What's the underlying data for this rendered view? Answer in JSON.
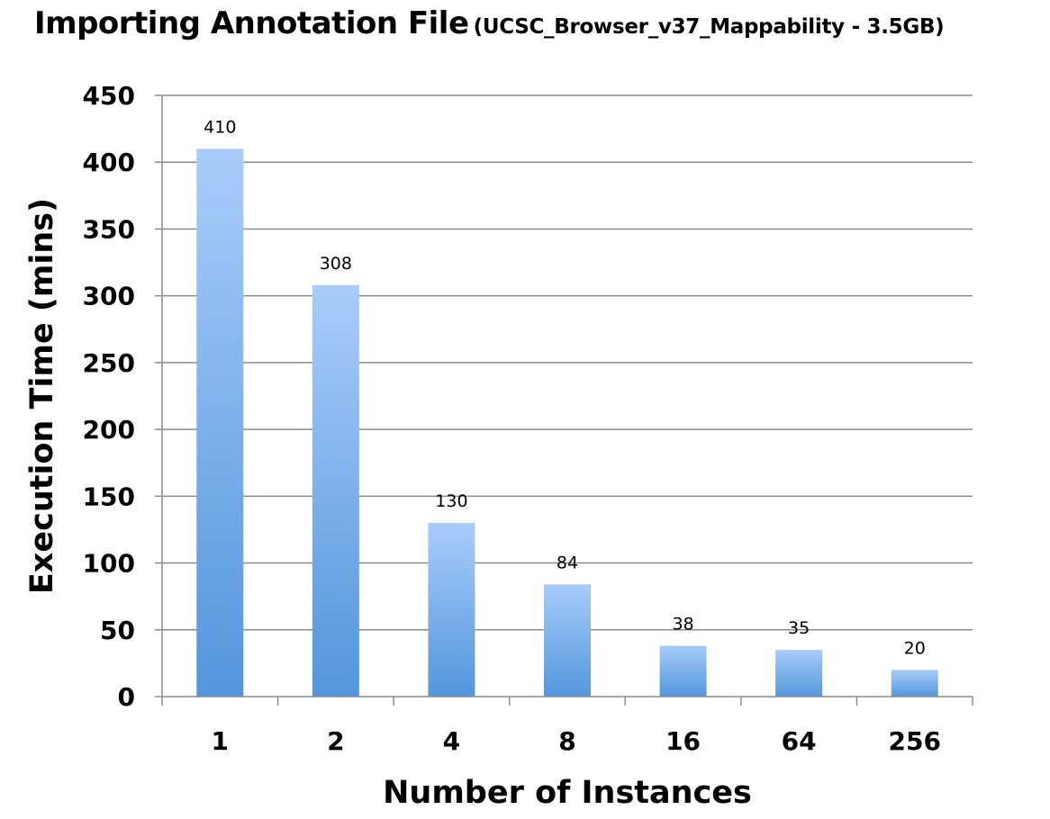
{
  "chart_data": {
    "type": "bar",
    "title": "Importing Annotation File",
    "subtitle": "(UCSC_Browser_v37_Mappability - 3.5GB)",
    "xlabel": "Number of Instances",
    "ylabel": "Execution Time (mins)",
    "categories": [
      "1",
      "2",
      "4",
      "8",
      "16",
      "64",
      "256"
    ],
    "values": [
      410,
      308,
      130,
      84,
      38,
      35,
      20
    ],
    "data_labels": [
      "410",
      "308",
      "130",
      "84",
      "38",
      "35",
      "20"
    ],
    "ylim": [
      0,
      450
    ],
    "yticks": [
      0,
      50,
      100,
      150,
      200,
      250,
      300,
      350,
      400,
      450
    ],
    "grid": true,
    "legend": "none",
    "colors": {
      "bar_top": "#a8ccfa",
      "bar_bottom": "#5396dc",
      "gridline": "#8c8c8c",
      "axis": "#8c8c8c"
    }
  }
}
